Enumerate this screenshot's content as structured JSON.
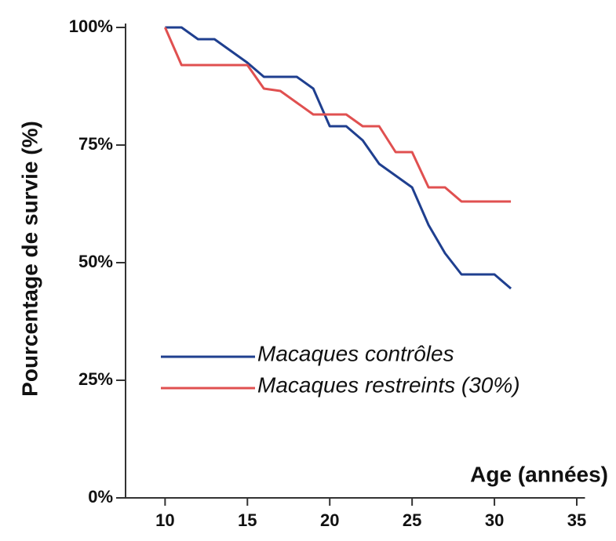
{
  "chart_data": {
    "type": "line",
    "x_label": "Age (années)",
    "y_label": "Pourcentage de survie (%)",
    "x": [
      10,
      11,
      12,
      13,
      14,
      15,
      16,
      17,
      18,
      19,
      20,
      21,
      22,
      23,
      24,
      25,
      26,
      27,
      28,
      29,
      30,
      31
    ],
    "series": [
      {
        "name": "Macaques contrôles",
        "color": "#1f3f8f",
        "values": [
          100,
          100,
          97.5,
          97.5,
          95,
          92.5,
          89.5,
          89.5,
          89.5,
          87,
          79,
          79,
          76,
          71,
          68.5,
          66,
          58,
          52,
          47.5,
          47.5,
          47.5,
          44.5
        ]
      },
      {
        "name": "Macaques restreints (30%)",
        "color": "#e05050",
        "values": [
          100,
          92,
          92,
          92,
          92,
          92,
          87,
          86.5,
          84,
          81.5,
          81.5,
          81.5,
          79,
          79,
          73.5,
          73.5,
          66,
          66,
          63,
          63,
          63,
          63
        ]
      }
    ],
    "xlim": [
      7.6,
      35.5
    ],
    "xticks": [
      10,
      15,
      20,
      25,
      30,
      35
    ],
    "ylim": [
      0,
      100
    ],
    "yticks": [
      {
        "value": 0,
        "label": "0%"
      },
      {
        "value": 25,
        "label": "25%"
      },
      {
        "value": 50,
        "label": "50%"
      },
      {
        "value": 75,
        "label": "75%"
      },
      {
        "value": 100,
        "label": "100%"
      }
    ],
    "legend": "lower left"
  }
}
